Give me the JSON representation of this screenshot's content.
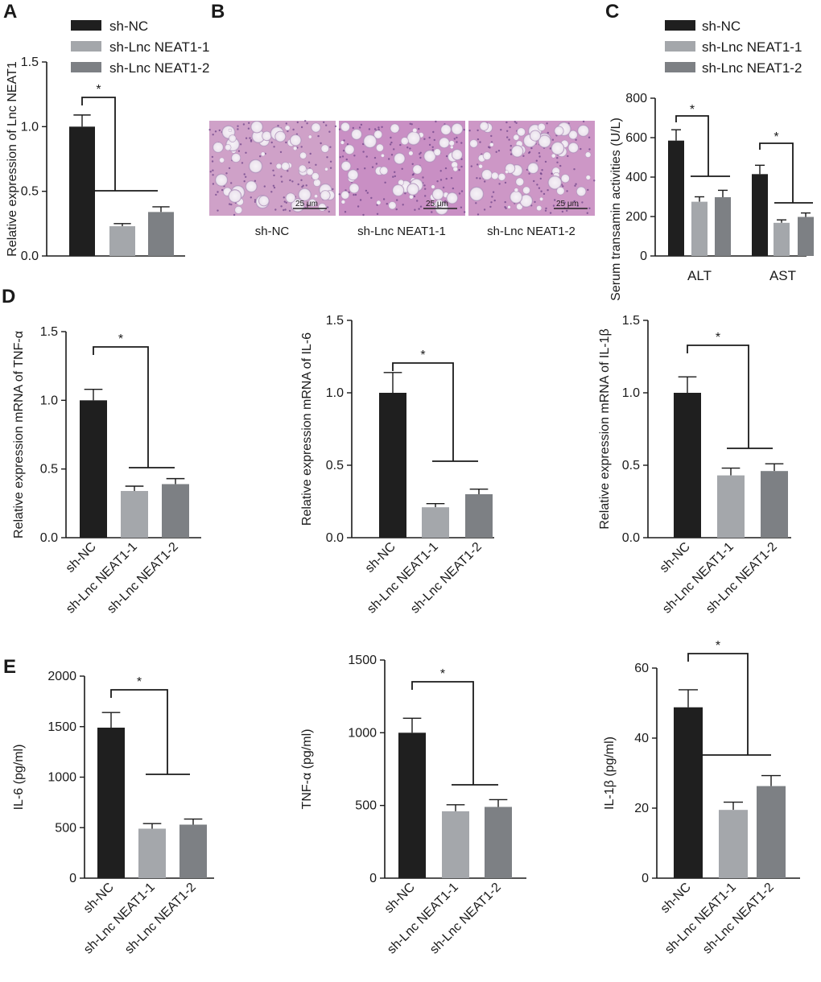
{
  "colors": {
    "sh_nc": "#1f1f1f",
    "sh_lnc1": "#a4a7ab",
    "sh_lnc2": "#7d8084",
    "axis": "#1a1a1a"
  },
  "legend_A": [
    "sh-NC",
    "sh-Lnc NEAT1-1",
    "sh-Lnc NEAT1-2"
  ],
  "legend_C": [
    "sh-NC",
    "sh-Lnc NEAT1-1",
    "sh-Lnc NEAT1-2"
  ],
  "panel_letters": {
    "A": "A",
    "B": "B",
    "C": "C",
    "D": "D",
    "E": "E"
  },
  "micrographs": [
    {
      "caption": "sh-NC",
      "scale": "25 μm"
    },
    {
      "caption": "sh-Lnc NEAT1-1",
      "scale": "25 μm"
    },
    {
      "caption": "sh-Lnc NEAT1-2",
      "scale": "25 μm"
    }
  ],
  "chart_data": [
    {
      "id": "A",
      "type": "bar",
      "ylabel": "Relative expression of Lnc NEAT1",
      "categories": [
        "sh-NC",
        "sh-Lnc NEAT1-1",
        "sh-Lnc NEAT1-2"
      ],
      "values": [
        1.0,
        0.23,
        0.34
      ],
      "errors": [
        0.09,
        0.02,
        0.04
      ],
      "ylim": [
        0,
        1.5
      ],
      "yticks": [
        "0.0",
        "0.5",
        "1.0",
        "1.5"
      ],
      "significance": "*"
    },
    {
      "id": "C",
      "type": "bar",
      "ylabel": "Serum transamin activities (U/L)",
      "categories": [
        "ALT",
        "AST"
      ],
      "series": [
        {
          "name": "sh-NC",
          "values": [
            585,
            415
          ],
          "errors": [
            55,
            45
          ]
        },
        {
          "name": "sh-Lnc NEAT1-1",
          "values": [
            275,
            168
          ],
          "errors": [
            25,
            15
          ]
        },
        {
          "name": "sh-Lnc NEAT1-2",
          "values": [
            298,
            198
          ],
          "errors": [
            35,
            20
          ]
        }
      ],
      "ylim": [
        0,
        800
      ],
      "yticks": [
        "0",
        "200",
        "400",
        "600",
        "800"
      ],
      "significance": [
        "*",
        "*"
      ]
    },
    {
      "id": "D1",
      "type": "bar",
      "ylabel": "Relative expression mRNA of TNF-α",
      "categories": [
        "sh-NC",
        "sh-Lnc NEAT1-1",
        "sh-Lnc NEAT1-2"
      ],
      "values": [
        1.0,
        0.34,
        0.39
      ],
      "errors": [
        0.08,
        0.035,
        0.04
      ],
      "ylim": [
        0,
        1.5
      ],
      "yticks": [
        "0.0",
        "0.5",
        "1.0",
        "1.5"
      ],
      "significance": "*"
    },
    {
      "id": "D2",
      "type": "bar",
      "ylabel": "Relative expression mRNA of IL-6",
      "categories": [
        "sh-NC",
        "sh-Lnc NEAT1-1",
        "sh-Lnc NEAT1-2"
      ],
      "values": [
        1.0,
        0.21,
        0.3
      ],
      "errors": [
        0.14,
        0.025,
        0.035
      ],
      "ylim": [
        0,
        1.5
      ],
      "yticks": [
        "0.0",
        "0.5",
        "1.0",
        "1.5"
      ],
      "significance": "*"
    },
    {
      "id": "D3",
      "type": "bar",
      "ylabel": "Relative expression mRNA of IL-1β",
      "categories": [
        "sh-NC",
        "sh-Lnc NEAT1-1",
        "sh-Lnc NEAT1-2"
      ],
      "values": [
        1.0,
        0.43,
        0.46
      ],
      "errors": [
        0.11,
        0.05,
        0.05
      ],
      "ylim": [
        0,
        1.5
      ],
      "yticks": [
        "0.0",
        "0.5",
        "1.0",
        "1.5"
      ],
      "significance": "*"
    },
    {
      "id": "E1",
      "type": "bar",
      "ylabel": "IL-6 (pg/ml)",
      "categories": [
        "sh-NC",
        "sh-Lnc NEAT1-1",
        "sh-Lnc NEAT1-2"
      ],
      "values": [
        1490,
        490,
        530
      ],
      "errors": [
        150,
        50,
        55
      ],
      "ylim": [
        0,
        2000
      ],
      "yticks": [
        "0",
        "500",
        "1000",
        "1500",
        "2000"
      ],
      "significance": "*"
    },
    {
      "id": "E2",
      "type": "bar",
      "ylabel": "TNF-α (pg/ml)",
      "categories": [
        "sh-NC",
        "sh-Lnc NEAT1-1",
        "sh-Lnc NEAT1-2"
      ],
      "values": [
        1000,
        460,
        490
      ],
      "errors": [
        100,
        45,
        50
      ],
      "ylim": [
        0,
        1500
      ],
      "yticks": [
        "0",
        "500",
        "1000",
        "1500"
      ],
      "significance": "*"
    },
    {
      "id": "E3",
      "type": "bar",
      "ylabel": "IL-1β (pg/ml)",
      "categories": [
        "sh-NC",
        "sh-Lnc NEAT1-1",
        "sh-Lnc NEAT1-2"
      ],
      "values": [
        48.8,
        19.5,
        26.3
      ],
      "errors": [
        5,
        2.2,
        3
      ],
      "ylim": [
        0,
        60
      ],
      "yticks": [
        "0",
        "20",
        "40",
        "60"
      ],
      "significance": "*"
    }
  ]
}
